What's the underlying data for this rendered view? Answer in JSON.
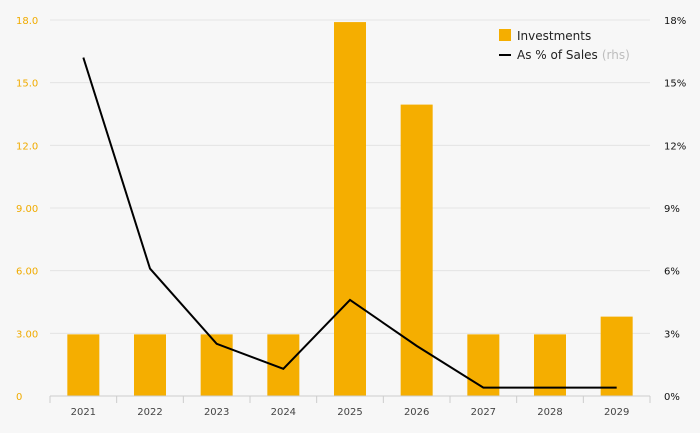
{
  "chart_data": {
    "type": "bar",
    "categories": [
      "2021",
      "2022",
      "2023",
      "2024",
      "2025",
      "2026",
      "2027",
      "2028",
      "2029"
    ],
    "series": [
      {
        "name": "Investments",
        "type": "bar",
        "axis": "left",
        "color": "#f5ae00",
        "values": [
          2.95,
          2.95,
          2.95,
          2.95,
          17.9,
          13.95,
          2.95,
          2.95,
          3.8
        ]
      },
      {
        "name": "As % of Sales",
        "name_suffix": "(rhs)",
        "type": "line",
        "axis": "right",
        "color": "#000000",
        "values": [
          16.2,
          6.1,
          2.5,
          1.3,
          4.6,
          2.4,
          0.4,
          0.4,
          0.4
        ]
      }
    ],
    "y_left": {
      "ylim": [
        0,
        18
      ],
      "ticks": [
        0,
        3,
        6,
        9,
        12,
        15,
        18
      ],
      "tick_labels": [
        "0",
        "3.00",
        "6.00",
        "9.00",
        "12.0",
        "15.0",
        "18.0"
      ],
      "color": "#f0ab00"
    },
    "y_right": {
      "ylim": [
        0,
        18
      ],
      "ticks": [
        0,
        3,
        6,
        9,
        12,
        15,
        18
      ],
      "tick_labels": [
        "0%",
        "3%",
        "6%",
        "9%",
        "12%",
        "15%",
        "18%"
      ],
      "color": "#111111"
    },
    "grid": true,
    "legend_position": "top-right"
  }
}
